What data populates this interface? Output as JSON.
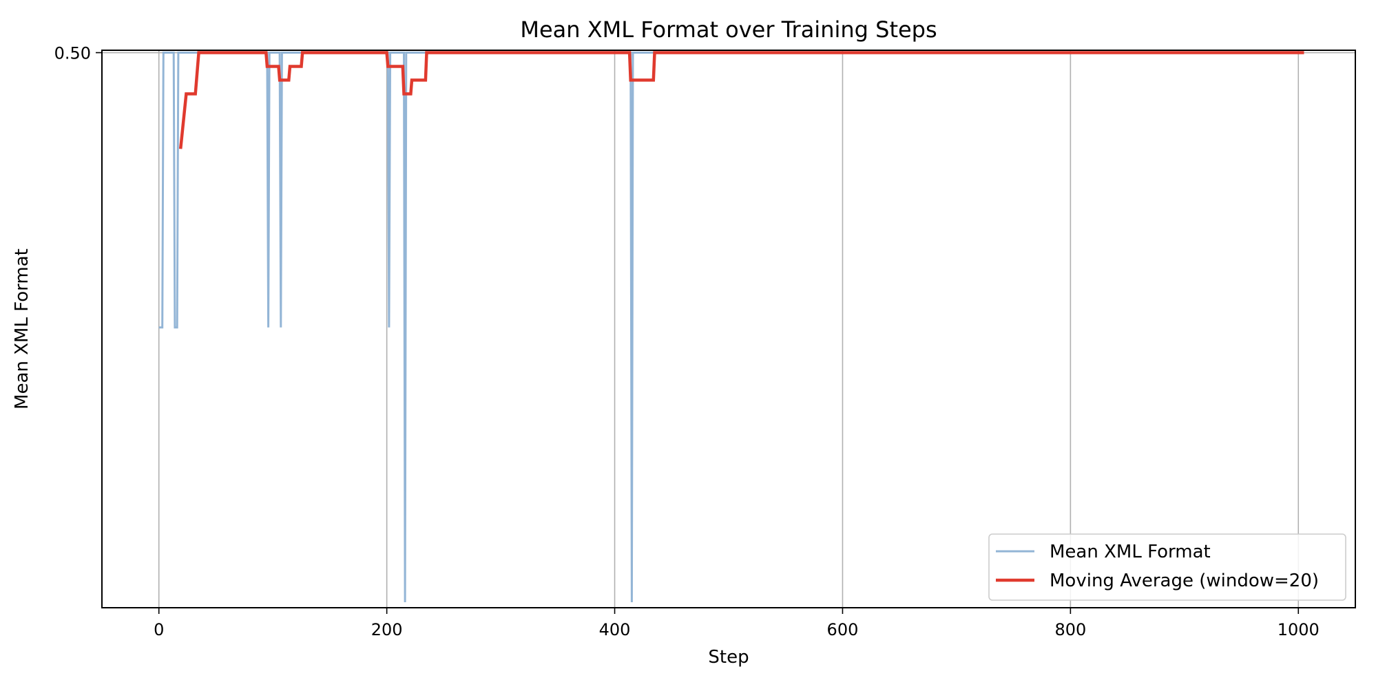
{
  "chart_data": {
    "type": "line",
    "title": "Mean XML Format over Training Steps",
    "xlabel": "Step",
    "ylabel": "Mean XML Format",
    "xlim": [
      -50,
      1050
    ],
    "ylim": [
      -0.005,
      0.5022
    ],
    "x_ticks": [
      0,
      200,
      400,
      600,
      800,
      1000
    ],
    "x_tick_labels": [
      "0",
      "200",
      "400",
      "600",
      "800",
      "1000"
    ],
    "y_ticks": [
      0.5
    ],
    "y_tick_labels": [
      "0.50"
    ],
    "grid": true,
    "legend_position": "lower-right",
    "series": [
      {
        "name": "Mean XML Format",
        "color": "#93b5d6",
        "style": "thin",
        "points": [
          [
            0,
            0.25
          ],
          [
            3,
            0.25
          ],
          [
            4,
            0.5
          ],
          [
            13,
            0.5
          ],
          [
            14,
            0.25
          ],
          [
            16,
            0.25
          ],
          [
            17,
            0.5
          ],
          [
            95,
            0.5
          ],
          [
            96,
            0.25
          ],
          [
            97,
            0.5
          ],
          [
            106,
            0.5
          ],
          [
            107,
            0.25
          ],
          [
            108,
            0.5
          ],
          [
            201,
            0.5
          ],
          [
            202,
            0.25
          ],
          [
            203,
            0.5
          ],
          [
            215,
            0.5
          ],
          [
            216,
            0.0
          ],
          [
            217,
            0.5
          ],
          [
            414,
            0.5
          ],
          [
            415,
            0.0
          ],
          [
            416,
            0.5
          ],
          [
            1005,
            0.5
          ]
        ]
      },
      {
        "name": "Moving Average (window=20)",
        "color": "#e03a2e",
        "style": "thick",
        "points": [
          [
            19,
            0.4125
          ],
          [
            24,
            0.4625
          ],
          [
            30,
            0.4625
          ],
          [
            31,
            0.4625
          ],
          [
            32,
            0.4625
          ],
          [
            35,
            0.5
          ],
          [
            94,
            0.5
          ],
          [
            95,
            0.4875
          ],
          [
            105,
            0.4875
          ],
          [
            106,
            0.475
          ],
          [
            114,
            0.475
          ],
          [
            115,
            0.4875
          ],
          [
            125,
            0.4875
          ],
          [
            126,
            0.5
          ],
          [
            200,
            0.5
          ],
          [
            201,
            0.4875
          ],
          [
            214,
            0.4875
          ],
          [
            215,
            0.4625
          ],
          [
            221,
            0.4625
          ],
          [
            222,
            0.475
          ],
          [
            234,
            0.475
          ],
          [
            235,
            0.5
          ],
          [
            413,
            0.5
          ],
          [
            414,
            0.475
          ],
          [
            434,
            0.475
          ],
          [
            435,
            0.5
          ],
          [
            1005,
            0.5
          ]
        ]
      }
    ]
  }
}
